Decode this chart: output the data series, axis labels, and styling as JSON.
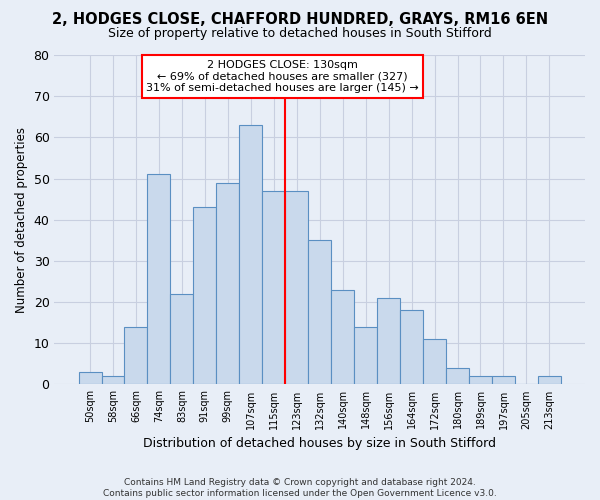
{
  "title_line1": "2, HODGES CLOSE, CHAFFORD HUNDRED, GRAYS, RM16 6EN",
  "title_line2": "Size of property relative to detached houses in South Stifford",
  "xlabel": "Distribution of detached houses by size in South Stifford",
  "ylabel": "Number of detached properties",
  "footnote1": "Contains HM Land Registry data © Crown copyright and database right 2024.",
  "footnote2": "Contains public sector information licensed under the Open Government Licence v3.0.",
  "bin_labels": [
    "50sqm",
    "58sqm",
    "66sqm",
    "74sqm",
    "83sqm",
    "91sqm",
    "99sqm",
    "107sqm",
    "115sqm",
    "123sqm",
    "132sqm",
    "140sqm",
    "148sqm",
    "156sqm",
    "164sqm",
    "172sqm",
    "180sqm",
    "189sqm",
    "197sqm",
    "205sqm",
    "213sqm"
  ],
  "bar_heights": [
    3,
    2,
    14,
    51,
    22,
    43,
    49,
    63,
    47,
    47,
    35,
    23,
    14,
    21,
    18,
    11,
    4,
    2,
    2,
    0,
    2
  ],
  "bar_color": "#c9d9ec",
  "bar_edge_color": "#5a8fc2",
  "grid_color": "#c8cfe0",
  "bg_color": "#e8eef7",
  "vline_color": "red",
  "annotation_line1": "2 HODGES CLOSE: 130sqm",
  "annotation_line2": "← 69% of detached houses are smaller (327)",
  "annotation_line3": "31% of semi-detached houses are larger (145) →",
  "annotation_box_color": "red",
  "annotation_bg": "white",
  "ylim": [
    0,
    80
  ],
  "yticks": [
    0,
    10,
    20,
    30,
    40,
    50,
    60,
    70,
    80
  ],
  "vline_pos": 8.5
}
